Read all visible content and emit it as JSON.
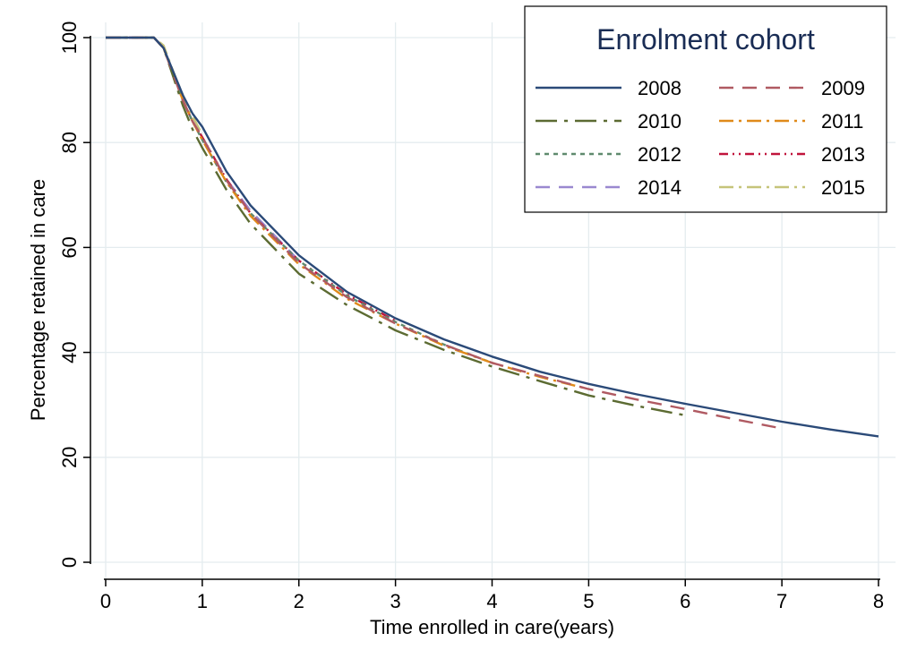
{
  "chart_data": {
    "type": "line",
    "title": "",
    "xlabel": "Time enrolled in care(years)",
    "ylabel": "Percentage retained in care",
    "xlim": [
      0,
      8
    ],
    "ylim": [
      0,
      100
    ],
    "xticks": [
      0,
      1,
      2,
      3,
      4,
      5,
      6,
      7,
      8
    ],
    "yticks": [
      0,
      20,
      40,
      60,
      80,
      100
    ],
    "grid": true,
    "legend": {
      "title": "Enrolment cohort",
      "placement": "top-right",
      "columns": 2
    },
    "series": [
      {
        "name": "2008",
        "color": "#2b4a78",
        "dash": "solid",
        "x": [
          0,
          0.5,
          0.6,
          0.7,
          0.8,
          0.9,
          1.0,
          1.25,
          1.5,
          2.0,
          2.5,
          3.0,
          3.5,
          4.0,
          4.5,
          5.0,
          5.5,
          6.0,
          6.5,
          7.0,
          7.5,
          8.0
        ],
        "y": [
          100,
          100,
          98,
          93.5,
          89,
          85.5,
          83,
          74.5,
          68,
          58.5,
          51.5,
          46.5,
          42.5,
          39.2,
          36.3,
          34,
          32,
          30.2,
          28.5,
          26.8,
          25.3,
          24
        ]
      },
      {
        "name": "2009",
        "color": "#b05a62",
        "dash": "longdash",
        "x": [
          0,
          0.5,
          0.6,
          0.7,
          0.8,
          0.9,
          1.0,
          1.25,
          1.5,
          2.0,
          2.5,
          3.0,
          3.5,
          4.0,
          4.5,
          5.0,
          5.5,
          6.0,
          6.5,
          7.0
        ],
        "y": [
          100,
          100,
          98,
          93,
          88,
          84,
          81,
          72.8,
          66.5,
          57,
          50.5,
          45.5,
          41.5,
          38,
          35.5,
          33,
          31,
          29.2,
          27.3,
          25.5
        ]
      },
      {
        "name": "2010",
        "color": "#5c6b32",
        "dash": "dash",
        "x": [
          0,
          0.5,
          0.6,
          0.7,
          0.8,
          0.9,
          1.0,
          1.25,
          1.5,
          2.0,
          2.5,
          3.0,
          3.5,
          4.0,
          4.5,
          5.0,
          5.5,
          6.0
        ],
        "y": [
          100,
          100,
          98,
          92.5,
          87,
          82.5,
          79,
          71,
          64.5,
          55,
          49,
          44.2,
          40.5,
          37.3,
          34.5,
          31.8,
          29.8,
          28
        ]
      },
      {
        "name": "2011",
        "color": "#e08a1a",
        "dash": "dashdot",
        "x": [
          0,
          0.5,
          0.6,
          0.7,
          0.8,
          0.9,
          1.0,
          1.25,
          1.5,
          2.0,
          2.5,
          3.0,
          3.5,
          4.0,
          4.5,
          5.0
        ],
        "y": [
          100,
          100,
          98,
          93,
          88,
          84,
          80.5,
          72.5,
          66,
          56.8,
          50.2,
          45.5,
          41.3,
          38,
          35.3,
          33
        ]
      },
      {
        "name": "2012",
        "color": "#5f8a6e",
        "dash": "shortdash",
        "x": [
          0,
          0.5,
          0.6,
          0.7,
          0.8,
          0.9,
          1.0,
          1.25,
          1.5,
          2.0,
          2.5,
          3.0,
          3.5,
          4.0
        ],
        "y": [
          100,
          100,
          98,
          93,
          88,
          84,
          80.5,
          72.5,
          66.5,
          57.5,
          50.8,
          45.8,
          41.5,
          38
        ]
      },
      {
        "name": "2013",
        "color": "#c0143c",
        "dash": "dashdotdot",
        "x": [
          0,
          0.5,
          0.6,
          0.7,
          0.8,
          0.9,
          1.0,
          1.25,
          1.5,
          2.0,
          2.5,
          3.0
        ],
        "y": [
          100,
          100,
          98,
          93,
          88,
          84,
          81,
          73,
          66.5,
          57.5,
          51,
          46
        ]
      },
      {
        "name": "2014",
        "color": "#9a88d0",
        "dash": "longdash",
        "x": [
          0,
          0.5,
          0.6,
          0.7,
          0.8,
          0.9,
          1.0,
          1.25,
          1.5,
          2.0
        ],
        "y": [
          100,
          100,
          98,
          93,
          88,
          84,
          81,
          73,
          67,
          57.5
        ]
      },
      {
        "name": "2015",
        "color": "#c6c47a",
        "dash": "dashdot",
        "x": [
          0,
          0.5,
          0.6,
          0.7,
          0.8,
          0.9,
          1.0
        ],
        "y": [
          100,
          100,
          98.5,
          93.5,
          89,
          85,
          81.5
        ]
      }
    ]
  }
}
